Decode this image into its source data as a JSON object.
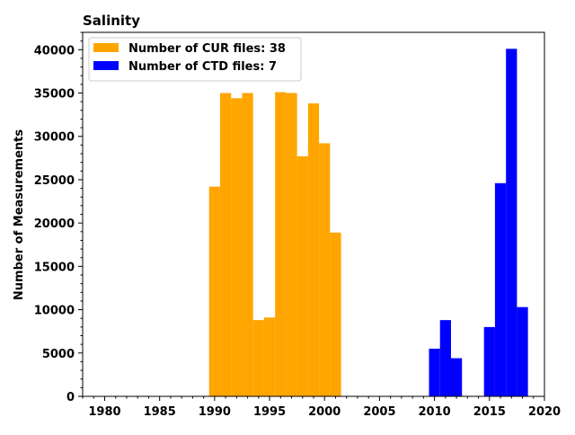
{
  "chart_data": {
    "type": "bar",
    "title": "Salinity",
    "xlabel": "",
    "ylabel": "Number of Measurements",
    "xlim": [
      1978,
      2020
    ],
    "ylim": [
      0,
      42000
    ],
    "x_ticks": [
      1980,
      1985,
      1990,
      1995,
      2000,
      2005,
      2010,
      2015,
      2020
    ],
    "y_ticks": [
      0,
      5000,
      10000,
      15000,
      20000,
      25000,
      30000,
      35000,
      40000
    ],
    "bin_width": 1,
    "legend_position": "top-left",
    "series": [
      {
        "name": "Number of CUR files: 38",
        "color": "#ffa500",
        "bins": [
          {
            "start": 1989.5,
            "value": 24200
          },
          {
            "start": 1990.5,
            "value": 35000
          },
          {
            "start": 1991.5,
            "value": 34400
          },
          {
            "start": 1992.5,
            "value": 35000
          },
          {
            "start": 1993.5,
            "value": 8800
          },
          {
            "start": 1994.5,
            "value": 9100
          },
          {
            "start": 1995.5,
            "value": 35100
          },
          {
            "start": 1996.5,
            "value": 35000
          },
          {
            "start": 1997.5,
            "value": 27700
          },
          {
            "start": 1998.5,
            "value": 33800
          },
          {
            "start": 1999.5,
            "value": 29200
          },
          {
            "start": 2000.5,
            "value": 18900
          }
        ]
      },
      {
        "name": "Number of CTD files: 7",
        "color": "#0000ff",
        "bins": [
          {
            "start": 2009.5,
            "value": 5500
          },
          {
            "start": 2010.5,
            "value": 8800
          },
          {
            "start": 2011.5,
            "value": 4400
          },
          {
            "start": 2014.5,
            "value": 8000
          },
          {
            "start": 2015.5,
            "value": 24600
          },
          {
            "start": 2016.5,
            "value": 40100
          },
          {
            "start": 2017.5,
            "value": 10300
          }
        ]
      }
    ]
  }
}
